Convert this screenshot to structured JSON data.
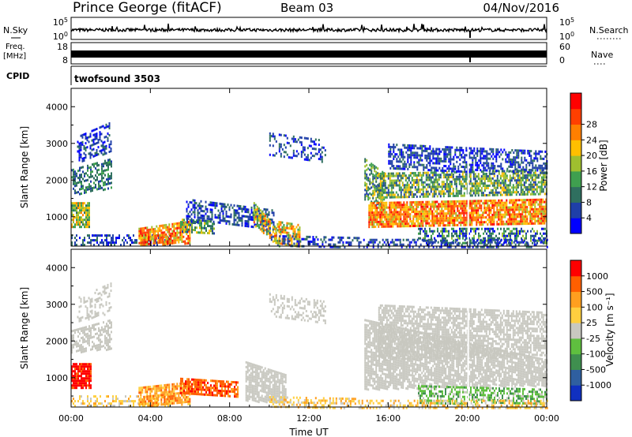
{
  "header": {
    "station": "Prince George (fitACF)",
    "beam": "Beam 03",
    "date": "04/Nov/2016"
  },
  "strips": {
    "nsky_label": "N.Sky",
    "nsky_ticks": [
      "10^5",
      "10^0"
    ],
    "nsky_right_ticks": [
      "10^5",
      "10^0"
    ],
    "nsearch_label": "N.Search",
    "freq_label_1": "Freq.",
    "freq_label_2": "[MHz]",
    "freq_ticks": [
      "18",
      "8"
    ],
    "nave_ticks": [
      "60",
      "0"
    ],
    "nave_label": "Nave",
    "cpid_label": "CPID",
    "cpid_value": "twofsound 3503"
  },
  "colors": {
    "power_scale": [
      "#0000ff",
      "#1f3fa8",
      "#2f6f5f",
      "#3f9f4f",
      "#9fbf2f",
      "#ffbf00",
      "#ff7f00",
      "#ff3f00",
      "#ff0000"
    ],
    "velocity_scale": [
      "#1030c0",
      "#2f5fa0",
      "#3f8f4f",
      "#5fbf3f",
      "#c8c8c0",
      "#ffcf3f",
      "#ff9f1f",
      "#ff5f00",
      "#ff0000"
    ]
  },
  "chart_data": [
    {
      "type": "heatmap",
      "ylabel": "Slant Range [km]",
      "ylim": [
        200,
        4500
      ],
      "yticks": [
        "1000",
        "2000",
        "3000",
        "4000"
      ],
      "colorbar_label": "Power [dB]",
      "colorbar_ticks": [
        "4",
        "8",
        "12",
        "16",
        "20",
        "24",
        "28"
      ],
      "colorbar_range": [
        0,
        30
      ]
    },
    {
      "type": "heatmap",
      "ylabel": "Slant Range [km]",
      "ylim": [
        200,
        4500
      ],
      "yticks": [
        "1000",
        "2000",
        "3000",
        "4000"
      ],
      "xticks": [
        "00:00",
        "04:00",
        "08:00",
        "12:00",
        "16:00",
        "20:00",
        "00:00"
      ],
      "xlabel": "Time UT",
      "colorbar_label": "Velocity [m s⁻¹]",
      "colorbar_ticks": [
        "1000",
        "500",
        "100",
        "25",
        "-25",
        "-100",
        "-500",
        "-1000"
      ]
    }
  ]
}
